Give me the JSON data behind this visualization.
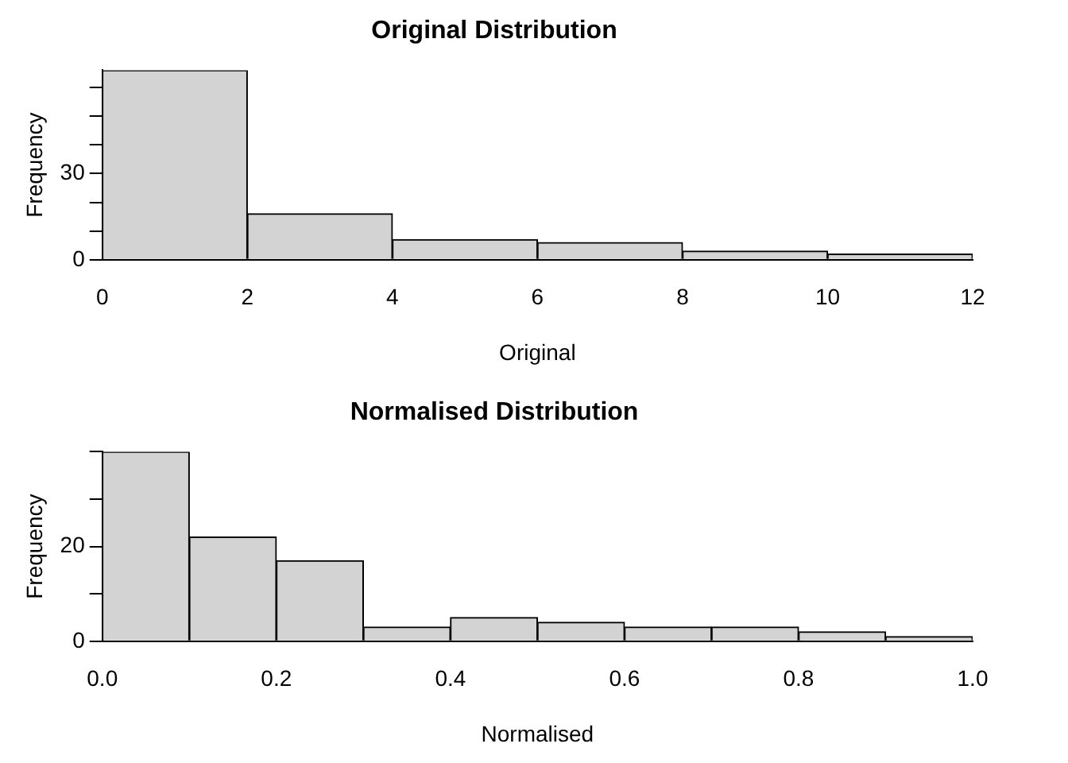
{
  "chart_data": [
    {
      "type": "histogram",
      "title": "Original Distribution",
      "xlabel": "Original",
      "ylabel": "Frequency",
      "bins": [
        0,
        2,
        4,
        6,
        8,
        10,
        12
      ],
      "values": [
        66,
        16,
        7,
        6,
        3,
        2
      ],
      "color": "#d3d3d3",
      "xlim": [
        0,
        12
      ],
      "xticks": [
        0,
        2,
        4,
        6,
        8,
        10,
        12
      ],
      "ylim": [
        0,
        66
      ],
      "yticks": [
        0,
        {
          "value": 10,
          "label": null
        },
        {
          "value": 20,
          "label": null
        },
        30,
        {
          "value": 40,
          "label": null
        },
        {
          "value": 50,
          "label": null
        },
        {
          "value": 60,
          "label": null
        }
      ],
      "grid": false,
      "legend": false
    },
    {
      "type": "histogram",
      "title": "Normalised Distribution",
      "xlabel": "Normalised",
      "ylabel": "Frequency",
      "bins": [
        0,
        0.1,
        0.2,
        0.3,
        0.4,
        0.5,
        0.6,
        0.7,
        0.8,
        0.9,
        1.0
      ],
      "values": [
        40,
        22,
        17,
        3,
        5,
        4,
        3,
        3,
        2,
        1
      ],
      "color": "#d3d3d3",
      "xlim": [
        0,
        1
      ],
      "xticks": [
        {
          "value": 0,
          "label": "0.0"
        },
        0.2,
        0.4,
        0.6,
        0.8,
        {
          "value": 1,
          "label": "1.0"
        }
      ],
      "ylim": [
        0,
        40
      ],
      "yticks": [
        0,
        {
          "value": 10,
          "label": null
        },
        20,
        {
          "value": 30,
          "label": null
        },
        {
          "value": 40,
          "label": null
        }
      ],
      "grid": false,
      "legend": false
    }
  ]
}
